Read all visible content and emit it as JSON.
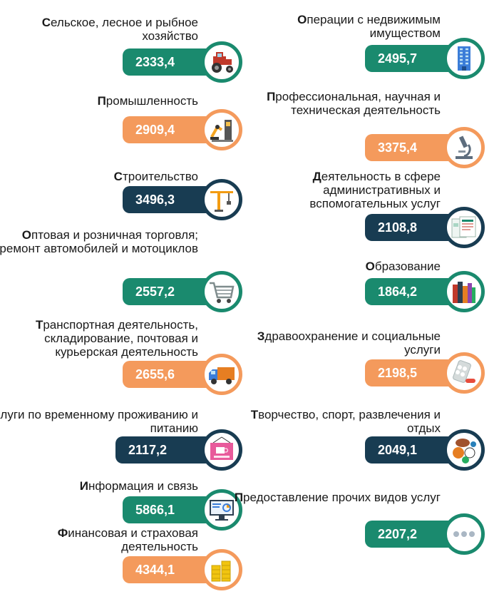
{
  "left": [
    {
      "first": "С",
      "rest": "ельское, лесное и рыбное хозяйство",
      "value": "2333,4",
      "color": "green",
      "icon": "tractor-icon"
    },
    {
      "first": "П",
      "rest": "ромышленность",
      "value": "2909,4",
      "color": "orange",
      "icon": "factory-robot-icon"
    },
    {
      "first": "С",
      "rest": "троительство",
      "value": "3496,3",
      "color": "navy",
      "icon": "crane-icon"
    },
    {
      "first": "О",
      "rest": "птовая и розничная торговля; ремонт автомобилей и мотоциклов",
      "value": "2557,2",
      "color": "green",
      "icon": "shopping-cart-icon"
    },
    {
      "first": "Т",
      "rest": "ранспортная деятельность, складирование, почтовая и курьерская деятельность",
      "value": "2655,6",
      "color": "orange",
      "icon": "delivery-truck-icon"
    },
    {
      "first": "У",
      "rest": "слуги по временному проживанию и питанию",
      "value": "2117,2",
      "color": "navy",
      "icon": "cafe-sign-icon"
    },
    {
      "first": "И",
      "rest": "нформация и связь",
      "value": "5866,1",
      "color": "green",
      "icon": "computer-monitor-icon"
    },
    {
      "first": "Ф",
      "rest": "инансовая  и страховая деятельность",
      "value": "4344,1",
      "color": "orange",
      "icon": "coins-icon"
    }
  ],
  "right": [
    {
      "first": "О",
      "rest": "перации с недвижимым имуществом",
      "value": "2495,7",
      "color": "green",
      "icon": "building-icon"
    },
    {
      "first": "П",
      "rest": "рофессиональная, научная и техническая деятельность",
      "value": "3375,4",
      "color": "orange",
      "icon": "microscope-icon"
    },
    {
      "first": "Д",
      "rest": "еятельность в сфере административных и вспомогательных услуг",
      "value": "2108,8",
      "color": "navy",
      "icon": "documents-icon"
    },
    {
      "first": "О",
      "rest": "бразование",
      "value": "1864,2",
      "color": "green",
      "icon": "books-icon"
    },
    {
      "first": "З",
      "rest": "дравоохранение и социальные услуги",
      "value": "2198,5",
      "color": "orange",
      "icon": "pills-icon"
    },
    {
      "first": "Т",
      "rest": "ворчество, спорт, развлечения и отдых",
      "value": "2049,1",
      "color": "navy",
      "icon": "sports-balls-icon"
    },
    {
      "first": "П",
      "rest": "редоставление прочих видов услуг",
      "value": "2207,2",
      "color": "green",
      "icon": "more-dots-icon"
    }
  ]
}
